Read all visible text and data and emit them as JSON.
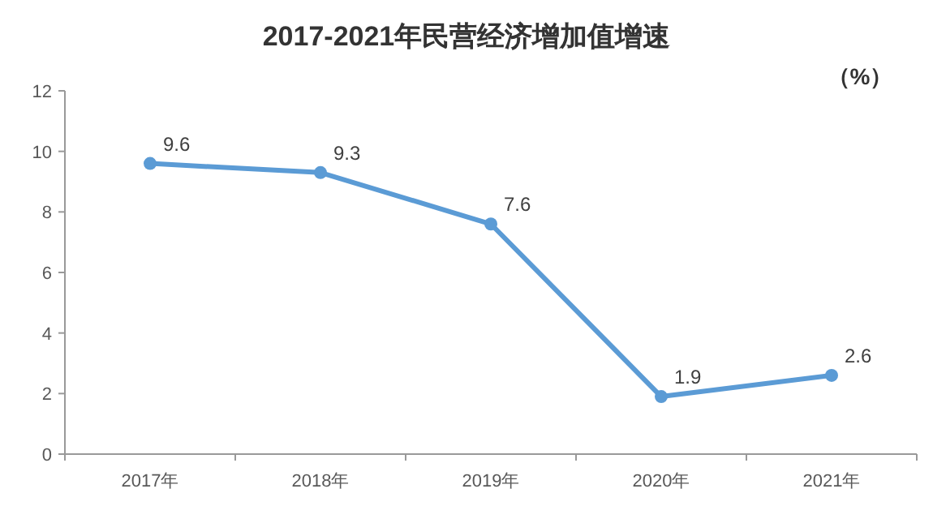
{
  "chart_data": {
    "type": "line",
    "title": "2017-2021年民营经济增加值增速",
    "ylabel": "（%）",
    "categories": [
      "2017年",
      "2018年",
      "2019年",
      "2020年",
      "2021年"
    ],
    "series": [
      {
        "color": "#5b9bd5",
        "values": [
          9.6,
          9.3,
          7.6,
          1.9,
          2.6
        ]
      }
    ],
    "ylim": [
      0,
      12
    ],
    "yticks": [
      0,
      2,
      4,
      6,
      8,
      10,
      12
    ],
    "marker": "circle",
    "line_style": "solid",
    "data_labels": true,
    "grid": false
  }
}
